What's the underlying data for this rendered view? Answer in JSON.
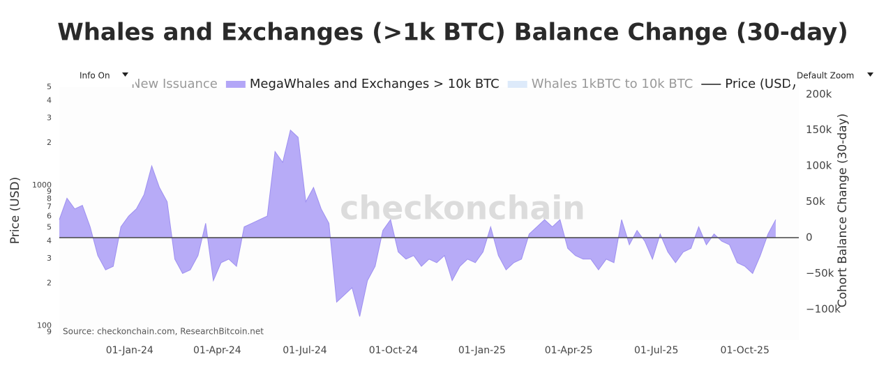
{
  "controls": {
    "info": "Info On",
    "zoom": "Default Zoom"
  },
  "chart_data": {
    "type": "area",
    "title": "Whales and Exchanges (>1k BTC) Balance Change (30-day)",
    "ylabel": "Price (USD)",
    "y2label": "Cohort Balance Change (30-day)",
    "source": "Source: checkonchain.com, ResearchBitcoin.net",
    "watermark": "checkonchain",
    "legend": [
      {
        "name": "New Issuance",
        "color": "#f4b183",
        "hidden": true
      },
      {
        "name": "MegaWhales and Exchanges > 10k BTC",
        "color": "#b3a6f7",
        "hidden": false
      },
      {
        "name": "Whales 1kBTC to 10k BTC",
        "color": "#c6dcf7",
        "hidden": true
      },
      {
        "name": "Price (USD)",
        "color": "#555555",
        "hidden": false
      }
    ],
    "x": [
      "2023-10-20",
      "2023-10-28",
      "2023-11-05",
      "2023-11-13",
      "2023-11-21",
      "2023-11-29",
      "2023-12-07",
      "2023-12-15",
      "2023-12-23",
      "2023-12-31",
      "2024-01-08",
      "2024-01-16",
      "2024-01-24",
      "2024-02-01",
      "2024-02-09",
      "2024-02-17",
      "2024-02-25",
      "2024-03-04",
      "2024-03-12",
      "2024-03-20",
      "2024-03-28",
      "2024-04-05",
      "2024-04-13",
      "2024-04-21",
      "2024-04-29",
      "2024-05-07",
      "2024-05-15",
      "2024-05-23",
      "2024-05-31",
      "2024-06-08",
      "2024-06-16",
      "2024-06-24",
      "2024-07-02",
      "2024-07-10",
      "2024-07-18",
      "2024-07-26",
      "2024-08-03",
      "2024-08-11",
      "2024-08-19",
      "2024-08-27",
      "2024-09-04",
      "2024-09-12",
      "2024-09-20",
      "2024-09-28",
      "2024-10-06",
      "2024-10-14",
      "2024-10-22",
      "2024-10-30",
      "2024-11-07",
      "2024-11-15",
      "2024-11-23",
      "2024-12-01",
      "2024-12-09",
      "2024-12-17",
      "2024-12-25",
      "2025-01-02",
      "2025-01-10",
      "2025-01-18",
      "2025-01-26",
      "2025-02-03",
      "2025-02-11",
      "2025-02-19",
      "2025-02-27",
      "2025-03-07",
      "2025-03-15",
      "2025-03-23",
      "2025-03-31",
      "2025-04-08",
      "2025-04-16",
      "2025-04-24",
      "2025-05-02",
      "2025-05-10",
      "2025-05-18",
      "2025-05-26",
      "2025-06-03",
      "2025-06-11",
      "2025-06-19",
      "2025-06-27",
      "2025-07-05",
      "2025-07-13",
      "2025-07-21",
      "2025-07-29",
      "2025-08-06",
      "2025-08-14",
      "2025-08-22",
      "2025-08-30",
      "2025-09-07",
      "2025-09-15",
      "2025-09-23",
      "2025-10-01",
      "2025-10-09",
      "2025-10-17",
      "2025-10-25",
      "2025-11-02"
    ],
    "series": [
      {
        "color": "#b3a6f7",
        "axis": "y2",
        "values": [
          25000,
          55000,
          40000,
          45000,
          15000,
          -25000,
          -45000,
          -40000,
          15000,
          30000,
          40000,
          60000,
          100000,
          70000,
          50000,
          -30000,
          -50000,
          -45000,
          -25000,
          20000,
          -60000,
          -35000,
          -30000,
          -40000,
          15000,
          20000,
          25000,
          30000,
          120000,
          105000,
          150000,
          140000,
          50000,
          70000,
          40000,
          20000,
          -90000,
          -80000,
          -70000,
          -110000,
          -60000,
          -40000,
          10000,
          25000,
          -20000,
          -30000,
          -25000,
          -40000,
          -30000,
          -35000,
          -25000,
          -60000,
          -40000,
          -30000,
          -35000,
          -20000,
          15000,
          -25000,
          -45000,
          -35000,
          -30000,
          5000,
          15000,
          25000,
          15000,
          25000,
          -15000,
          -25000,
          -30000,
          -30000,
          -45000,
          -30000,
          -35000,
          25000,
          -10000,
          10000,
          -5000,
          -30000,
          5000,
          -20000,
          -35000,
          -20000,
          -15000,
          15000,
          -10000,
          5000,
          -5000,
          -10000,
          -35000,
          -40000,
          -50000,
          -25000,
          5000,
          25000
        ]
      }
    ],
    "xlim": [
      "2023-10-20",
      "2025-11-26"
    ],
    "xticks": [
      {
        "value": "2024-01-01",
        "label": "01-Jan-24"
      },
      {
        "value": "2024-04-01",
        "label": "01-Apr-24"
      },
      {
        "value": "2024-07-01",
        "label": "01-Jul-24"
      },
      {
        "value": "2024-10-01",
        "label": "01-Oct-24"
      },
      {
        "value": "2025-01-01",
        "label": "01-Jan-25"
      },
      {
        "value": "2025-04-01",
        "label": "01-Apr-25"
      },
      {
        "value": "2025-07-01",
        "label": "01-Jul-25"
      },
      {
        "value": "2025-10-01",
        "label": "01-Oct-25"
      }
    ],
    "ylim": [
      79,
      5000
    ],
    "ylog": true,
    "yticks": [
      {
        "value": 5000,
        "label": "5"
      },
      {
        "value": 4000,
        "label": "4"
      },
      {
        "value": 3000,
        "label": "3"
      },
      {
        "value": 2000,
        "label": "2"
      },
      1000,
      {
        "value": 900,
        "label": "9"
      },
      {
        "value": 800,
        "label": "8"
      },
      {
        "value": 700,
        "label": "7"
      },
      {
        "value": 600,
        "label": "6"
      },
      {
        "value": 500,
        "label": "5"
      },
      {
        "value": 400,
        "label": "4"
      },
      {
        "value": 300,
        "label": "3"
      },
      {
        "value": 200,
        "label": "2"
      },
      100,
      {
        "value": 90,
        "label": "9"
      }
    ],
    "y2lim": [
      -143000,
      210000
    ],
    "y2ticks": [
      {
        "value": 200000,
        "label": "200k"
      },
      {
        "value": 150000,
        "label": "150k"
      },
      {
        "value": 100000,
        "label": "100k"
      },
      {
        "value": 50000,
        "label": "50k"
      },
      0,
      {
        "value": -50000,
        "label": "−50k"
      },
      {
        "value": -100000,
        "label": "−100k"
      }
    ]
  }
}
